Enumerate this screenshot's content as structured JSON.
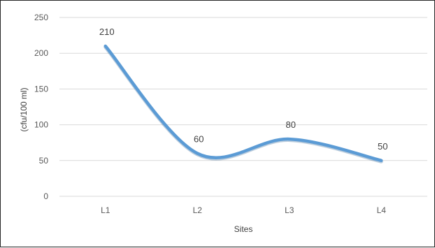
{
  "chart_data": {
    "type": "line",
    "title": "",
    "xlabel": "Sites",
    "ylabel": "(cfu/100 ml)",
    "categories": [
      "L1",
      "L2",
      "L3",
      "L4"
    ],
    "series": [
      {
        "values": [
          210,
          60,
          80,
          50
        ],
        "data_labels": [
          "210",
          "60",
          "80",
          "50"
        ]
      }
    ],
    "ylim": [
      0,
      250
    ],
    "yticks": [
      0,
      50,
      100,
      150,
      200,
      250
    ],
    "ytick_labels": [
      "0",
      "50",
      "100",
      "150",
      "200",
      "250"
    ],
    "grid": true,
    "smooth": true,
    "line_color": "#5b9bd5"
  }
}
